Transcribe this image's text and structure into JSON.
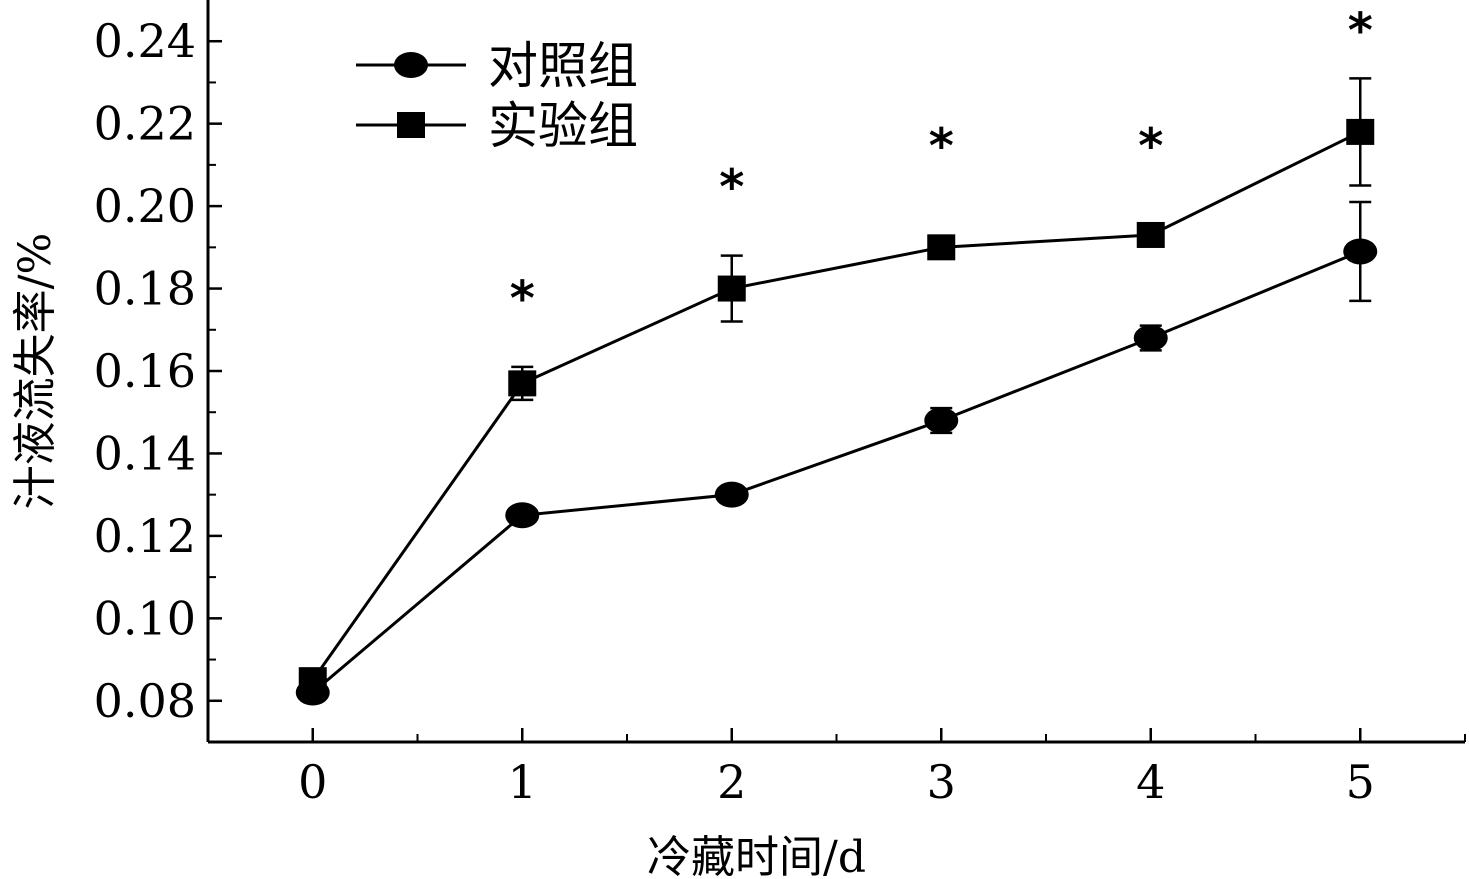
{
  "chart_data": {
    "type": "line",
    "x": [
      0,
      1,
      2,
      3,
      4,
      5
    ],
    "xlabel": "冷藏时间/d",
    "ylabel": "汁液流失率/%",
    "xlim": [
      -0.5,
      5.5
    ],
    "ylim": [
      0.07,
      0.25
    ],
    "x_ticks": [
      "0",
      "1",
      "2",
      "3",
      "4",
      "5"
    ],
    "y_ticks": [
      "0.08",
      "0.10",
      "0.12",
      "0.14",
      "0.16",
      "0.18",
      "0.20",
      "0.22",
      "0.24"
    ],
    "grid": false,
    "legend_position": "top-left",
    "series": [
      {
        "name": "对照组",
        "marker": "circle",
        "values": [
          0.082,
          0.125,
          0.13,
          0.148,
          0.168,
          0.189
        ],
        "errors": [
          0.001,
          0.001,
          0.001,
          0.003,
          0.003,
          0.012
        ]
      },
      {
        "name": "实验组",
        "marker": "square",
        "values": [
          0.085,
          0.157,
          0.18,
          0.19,
          0.193,
          0.218
        ],
        "errors": [
          0.001,
          0.004,
          0.008,
          0.001,
          0.001,
          0.013
        ]
      }
    ],
    "significance": {
      "symbol": "*",
      "x": [
        1,
        2,
        3,
        4,
        5
      ],
      "y": [
        0.178,
        0.205,
        0.215,
        0.215,
        0.243
      ]
    },
    "colors": {
      "line": "#000000",
      "background": "#ffffff"
    }
  }
}
